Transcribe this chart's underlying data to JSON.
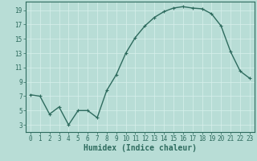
{
  "x": [
    0,
    1,
    2,
    3,
    4,
    5,
    6,
    7,
    8,
    9,
    10,
    11,
    12,
    13,
    14,
    15,
    16,
    17,
    18,
    19,
    20,
    21,
    22,
    23
  ],
  "y": [
    7.2,
    7.0,
    4.5,
    5.5,
    3.0,
    5.0,
    5.0,
    4.0,
    7.8,
    10.0,
    13.0,
    15.2,
    16.8,
    18.0,
    18.8,
    19.3,
    19.5,
    19.3,
    19.2,
    18.5,
    16.8,
    13.2,
    10.5,
    9.5
  ],
  "line_color": "#2e6b5e",
  "marker": "+",
  "marker_size": 3,
  "bg_color": "#b8ddd6",
  "grid_color": "#d8f0ec",
  "xlabel": "Humidex (Indice chaleur)",
  "ylabel": "",
  "xlim": [
    -0.5,
    23.5
  ],
  "ylim": [
    2,
    20.2
  ],
  "yticks": [
    3,
    5,
    7,
    9,
    11,
    13,
    15,
    17,
    19
  ],
  "xticks": [
    0,
    1,
    2,
    3,
    4,
    5,
    6,
    7,
    8,
    9,
    10,
    11,
    12,
    13,
    14,
    15,
    16,
    17,
    18,
    19,
    20,
    21,
    22,
    23
  ],
  "tick_label_fontsize": 5.5,
  "xlabel_fontsize": 7,
  "line_width": 1.0
}
